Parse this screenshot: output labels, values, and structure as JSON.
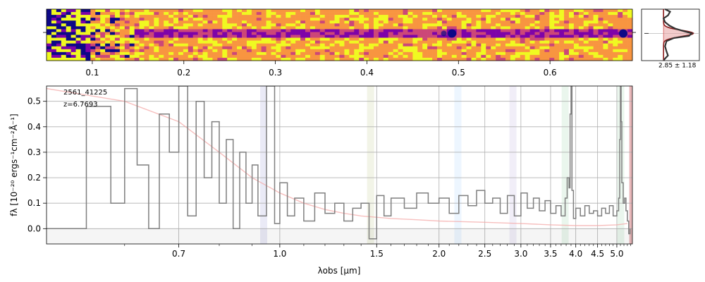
{
  "figure": {
    "object_id": "2561_41225",
    "redshift_label": "z=6.7693",
    "profile_label": "2.85 ± 1.18"
  },
  "chart_data": [
    {
      "type": "heatmap",
      "name": "2d-spectrum",
      "xlim": [
        0.05,
        0.69
      ],
      "xticks": [
        0.1,
        0.2,
        0.3,
        0.4,
        0.5,
        0.6
      ],
      "xtick_labels": [
        "0.1",
        "0.2",
        "0.3",
        "0.4",
        "0.5",
        "0.6"
      ],
      "colormap": [
        "#0d0887",
        "#7e03a8",
        "#cc4778",
        "#f89540",
        "#f0f921"
      ],
      "trace_features": [
        {
          "x": 0.493,
          "strength": "strong"
        },
        {
          "x": 0.484,
          "strength": "weak"
        },
        {
          "x": 0.68,
          "strength": "strong"
        }
      ]
    },
    {
      "type": "line",
      "name": "spatial-profile",
      "ylim": [
        -0.5,
        1.2
      ],
      "profile": [
        {
          "y": 0.0,
          "v": 0.05
        },
        {
          "y": 0.05,
          "v": 0.22
        },
        {
          "y": 0.12,
          "v": 0.15
        },
        {
          "y": 0.18,
          "v": 0.0
        },
        {
          "y": 0.25,
          "v": 0.05
        },
        {
          "y": 0.32,
          "v": 0.2
        },
        {
          "y": 0.38,
          "v": 0.4
        },
        {
          "y": 0.43,
          "v": 0.7
        },
        {
          "y": 0.47,
          "v": 0.95
        },
        {
          "y": 0.52,
          "v": 0.85
        },
        {
          "y": 0.56,
          "v": 0.35
        },
        {
          "y": 0.62,
          "v": 0.1
        },
        {
          "y": 0.72,
          "v": 0.05
        },
        {
          "y": 0.82,
          "v": 0.1
        },
        {
          "y": 0.9,
          "v": 0.15
        },
        {
          "y": 0.96,
          "v": 0.05
        },
        {
          "y": 1.0,
          "v": 0.0
        }
      ],
      "fit_center": 0.47,
      "fit_width": 0.06
    },
    {
      "type": "line",
      "name": "1d-spectrum",
      "xlabel": "λobs [μm]",
      "ylabel": "fλ [10⁻²⁰ ergs⁻¹cm⁻²Å⁻¹]",
      "xlim": [
        0.52,
        5.45
      ],
      "ylim": [
        -0.06,
        0.56
      ],
      "xticks": [
        0.7,
        1.0,
        1.5,
        2.0,
        2.5,
        3.0,
        3.5,
        4.0,
        4.5,
        5.0
      ],
      "xtick_labels": [
        "0.7",
        "1.0",
        "1.5",
        "2.0",
        "2.5",
        "3.0",
        "3.5",
        "4.0",
        "4.5",
        "5.0"
      ],
      "yticks": [
        0.0,
        0.1,
        0.2,
        0.3,
        0.4,
        0.5
      ],
      "ytick_labels": [
        "0.0",
        "0.1",
        "0.2",
        "0.3",
        "0.4",
        "0.5"
      ],
      "grid": true,
      "line_bands": [
        {
          "x": 0.94,
          "color": "#8888cc"
        },
        {
          "x": 1.46,
          "color": "#b5c27a"
        },
        {
          "x": 2.19,
          "color": "#99ccff"
        },
        {
          "x": 2.88,
          "color": "#b0a0d8"
        },
        {
          "x": 3.78,
          "color": "#88cc99"
        },
        {
          "x": 5.11,
          "color": "#88cc99"
        }
      ],
      "edge_band": {
        "x": 5.42,
        "color": "#d9888c"
      },
      "flux_series": {
        "name": "flux",
        "color": "#7f7f7f",
        "points": [
          [
            0.52,
            0.0
          ],
          [
            0.55,
            0.48
          ],
          [
            0.58,
            0.1
          ],
          [
            0.6,
            0.55
          ],
          [
            0.62,
            0.25
          ],
          [
            0.64,
            0.0
          ],
          [
            0.66,
            0.45
          ],
          [
            0.68,
            0.3
          ],
          [
            0.7,
            0.56
          ],
          [
            0.72,
            0.05
          ],
          [
            0.74,
            0.5
          ],
          [
            0.76,
            0.2
          ],
          [
            0.78,
            0.42
          ],
          [
            0.8,
            0.1
          ],
          [
            0.82,
            0.35
          ],
          [
            0.84,
            0.0
          ],
          [
            0.86,
            0.3
          ],
          [
            0.88,
            0.1
          ],
          [
            0.9,
            0.25
          ],
          [
            0.92,
            0.05
          ],
          [
            0.95,
            0.56
          ],
          [
            0.98,
            0.02
          ],
          [
            1.0,
            0.18
          ],
          [
            1.03,
            0.05
          ],
          [
            1.06,
            0.12
          ],
          [
            1.1,
            0.03
          ],
          [
            1.15,
            0.14
          ],
          [
            1.2,
            0.06
          ],
          [
            1.25,
            0.1
          ],
          [
            1.3,
            0.03
          ],
          [
            1.35,
            0.08
          ],
          [
            1.4,
            0.1
          ],
          [
            1.45,
            -0.04
          ],
          [
            1.5,
            0.13
          ],
          [
            1.55,
            0.05
          ],
          [
            1.6,
            0.12
          ],
          [
            1.7,
            0.08
          ],
          [
            1.8,
            0.14
          ],
          [
            1.9,
            0.1
          ],
          [
            2.0,
            0.12
          ],
          [
            2.1,
            0.06
          ],
          [
            2.2,
            0.13
          ],
          [
            2.3,
            0.09
          ],
          [
            2.4,
            0.15
          ],
          [
            2.5,
            0.1
          ],
          [
            2.6,
            0.12
          ],
          [
            2.7,
            0.06
          ],
          [
            2.8,
            0.13
          ],
          [
            2.9,
            0.05
          ],
          [
            3.0,
            0.14
          ],
          [
            3.1,
            0.08
          ],
          [
            3.2,
            0.12
          ],
          [
            3.3,
            0.07
          ],
          [
            3.4,
            0.11
          ],
          [
            3.5,
            0.06
          ],
          [
            3.6,
            0.09
          ],
          [
            3.7,
            0.05
          ],
          [
            3.78,
            0.12
          ],
          [
            3.82,
            0.2
          ],
          [
            3.86,
            0.16
          ],
          [
            3.88,
            0.45
          ],
          [
            3.9,
            0.56
          ],
          [
            3.92,
            0.15
          ],
          [
            3.95,
            0.04
          ],
          [
            4.0,
            0.08
          ],
          [
            4.1,
            0.05
          ],
          [
            4.2,
            0.09
          ],
          [
            4.3,
            0.06
          ],
          [
            4.4,
            0.07
          ],
          [
            4.5,
            0.05
          ],
          [
            4.6,
            0.08
          ],
          [
            4.7,
            0.06
          ],
          [
            4.8,
            0.09
          ],
          [
            4.9,
            0.05
          ],
          [
            5.0,
            0.07
          ],
          [
            5.05,
            0.12
          ],
          [
            5.08,
            0.35
          ],
          [
            5.1,
            0.56
          ],
          [
            5.12,
            0.42
          ],
          [
            5.14,
            0.18
          ],
          [
            5.18,
            0.1
          ],
          [
            5.22,
            0.12
          ],
          [
            5.26,
            0.07
          ],
          [
            5.3,
            0.03
          ],
          [
            5.34,
            -0.02
          ],
          [
            5.38,
            0.0
          ]
        ]
      },
      "error_series": {
        "name": "uncertainty",
        "color": "#f4a9a8",
        "points": [
          [
            0.52,
            0.55
          ],
          [
            0.6,
            0.5
          ],
          [
            0.7,
            0.42
          ],
          [
            0.8,
            0.3
          ],
          [
            0.9,
            0.2
          ],
          [
            1.0,
            0.14
          ],
          [
            1.1,
            0.1
          ],
          [
            1.2,
            0.075
          ],
          [
            1.3,
            0.06
          ],
          [
            1.4,
            0.05
          ],
          [
            1.6,
            0.04
          ],
          [
            1.8,
            0.035
          ],
          [
            2.0,
            0.03
          ],
          [
            2.5,
            0.025
          ],
          [
            3.0,
            0.02
          ],
          [
            3.5,
            0.015
          ],
          [
            4.0,
            0.012
          ],
          [
            4.5,
            0.012
          ],
          [
            5.0,
            0.015
          ],
          [
            5.3,
            0.02
          ]
        ]
      }
    }
  ]
}
